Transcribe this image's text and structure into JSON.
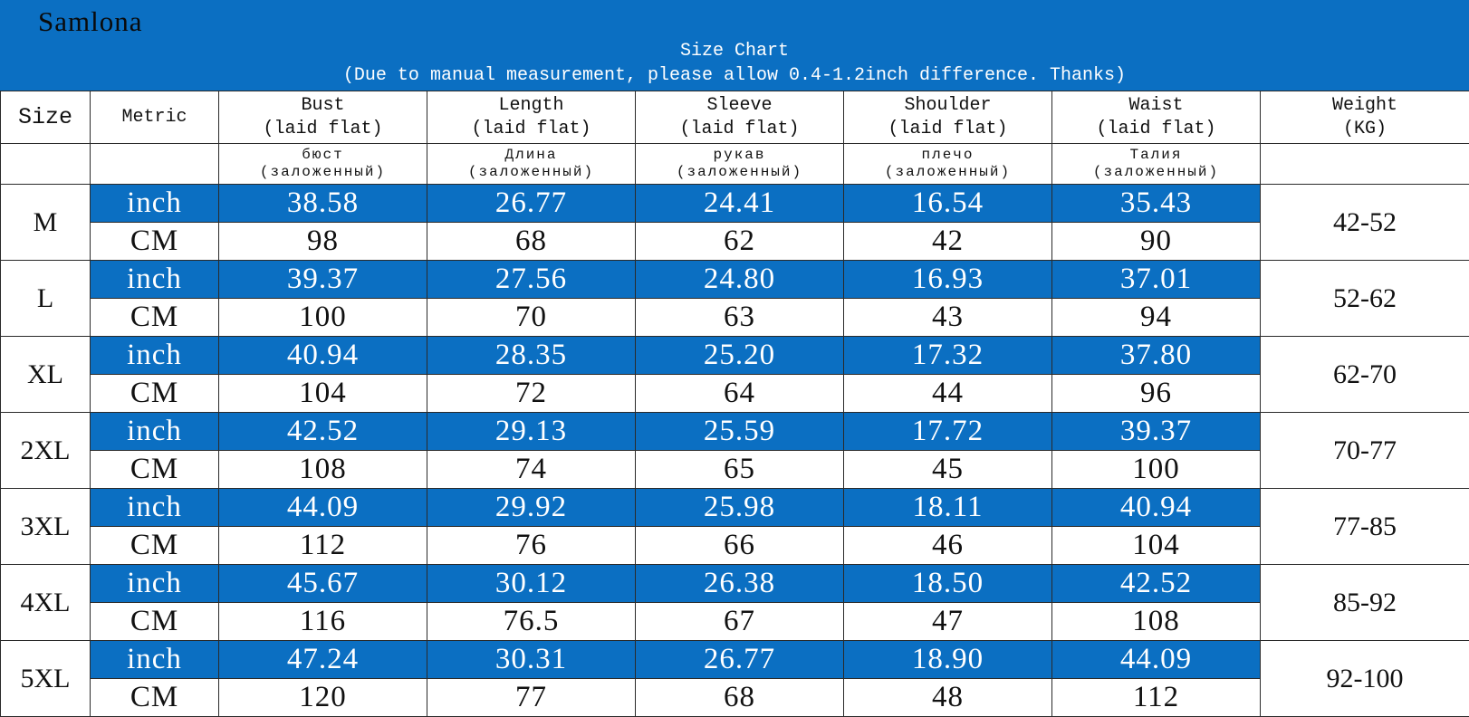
{
  "header": {
    "brand": "Samlona",
    "title": "Size Chart",
    "note": "(Due to manual measurement, please allow 0.4-1.2inch difference. Thanks)"
  },
  "columns": {
    "size": "Size",
    "metric": "Metric",
    "measures": [
      {
        "en": "Bust",
        "sub": "(laid flat)",
        "ru": "бюст",
        "ru_sub": "(заложенный)"
      },
      {
        "en": "Length",
        "sub": "(laid flat)",
        "ru": "Длина",
        "ru_sub": "(заложенный)"
      },
      {
        "en": "Sleeve",
        "sub": "(laid flat)",
        "ru": "рукав",
        "ru_sub": "(заложенный)"
      },
      {
        "en": "Shoulder",
        "sub": "(laid flat)",
        "ru": "плечо",
        "ru_sub": "(заложенный)"
      },
      {
        "en": "Waist",
        "sub": "(laid flat)",
        "ru": "Талия",
        "ru_sub": "(заложенный)"
      }
    ],
    "weight": "Weight",
    "weight_unit": "(KG)"
  },
  "units": {
    "inch": "inch",
    "cm": "CM"
  },
  "rows": [
    {
      "size": "M",
      "inch": [
        "38.58",
        "26.77",
        "24.41",
        "16.54",
        "35.43"
      ],
      "cm": [
        "98",
        "68",
        "62",
        "42",
        "90"
      ],
      "weight": "42-52"
    },
    {
      "size": "L",
      "inch": [
        "39.37",
        "27.56",
        "24.80",
        "16.93",
        "37.01"
      ],
      "cm": [
        "100",
        "70",
        "63",
        "43",
        "94"
      ],
      "weight": "52-62"
    },
    {
      "size": "XL",
      "inch": [
        "40.94",
        "28.35",
        "25.20",
        "17.32",
        "37.80"
      ],
      "cm": [
        "104",
        "72",
        "64",
        "44",
        "96"
      ],
      "weight": "62-70"
    },
    {
      "size": "2XL",
      "inch": [
        "42.52",
        "29.13",
        "25.59",
        "17.72",
        "39.37"
      ],
      "cm": [
        "108",
        "74",
        "65",
        "45",
        "100"
      ],
      "weight": "70-77"
    },
    {
      "size": "3XL",
      "inch": [
        "44.09",
        "29.92",
        "25.98",
        "18.11",
        "40.94"
      ],
      "cm": [
        "112",
        "76",
        "66",
        "46",
        "104"
      ],
      "weight": "77-85"
    },
    {
      "size": "4XL",
      "inch": [
        "45.67",
        "30.12",
        "26.38",
        "18.50",
        "42.52"
      ],
      "cm": [
        "116",
        "76.5",
        "67",
        "47",
        "108"
      ],
      "weight": "85-92"
    },
    {
      "size": "5XL",
      "inch": [
        "47.24",
        "30.31",
        "26.77",
        "18.90",
        "44.09"
      ],
      "cm": [
        "120",
        "77",
        "68",
        "48",
        "112"
      ],
      "weight": "92-100"
    }
  ],
  "colors": {
    "banner": "#0b6fc2",
    "inch_row": "#0b6fc2",
    "cm_row": "#ffffff"
  }
}
